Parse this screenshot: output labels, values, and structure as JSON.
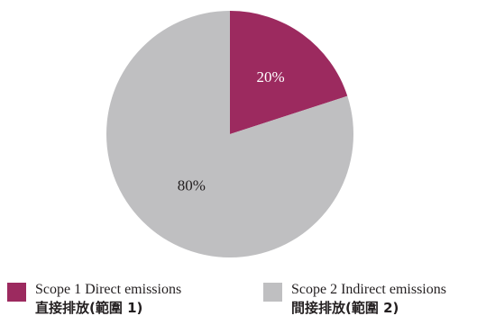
{
  "chart_data": {
    "type": "pie",
    "slices": [
      {
        "name": "Scope 1 Direct emissions",
        "name_zh": "直接排放(範圍 1)",
        "value": 20,
        "label": "20%",
        "color": "#9c2a5f",
        "label_color": "#ffffff"
      },
      {
        "name": "Scope 2 Indirect emissions",
        "name_zh": "間接排放(範圍 2)",
        "value": 80,
        "label": "80%",
        "color": "#bfbfc1",
        "label_color": "#231f20"
      }
    ],
    "start_angle_deg": 0,
    "direction": "clockwise",
    "legend_position": "bottom"
  },
  "legend": {
    "items": [
      {
        "line1": "Scope 1 Direct emissions",
        "line2": "直接排放(範圍 1)"
      },
      {
        "line1": "Scope 2 Indirect emissions",
        "line2": "間接排放(範圍 2)"
      }
    ]
  }
}
